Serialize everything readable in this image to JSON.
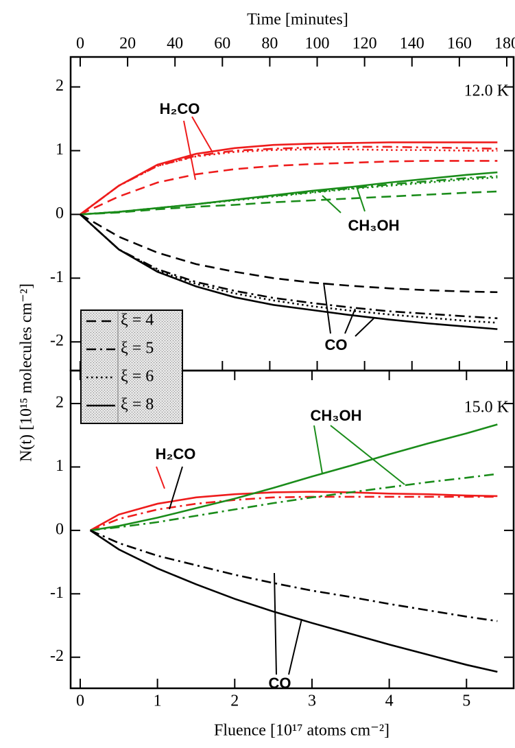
{
  "chart_data": [
    {
      "type": "line",
      "x2label": "Time [minutes]",
      "x2lim": [
        -4.04,
        182.9
      ],
      "x2ticks": [
        0,
        20,
        40,
        60,
        80,
        100,
        120,
        140,
        160,
        180
      ],
      "ylabel": "N(t) [10¹⁵ molecules cm⁻²]",
      "xlim": [
        -0.124,
        5.61
      ],
      "ylim": [
        -2.45,
        2.47
      ],
      "yticks": [
        -2,
        -1,
        0,
        1,
        2
      ],
      "x": [
        0,
        0.5,
        1,
        1.5,
        2,
        2.5,
        3,
        3.5,
        4,
        4.5,
        5,
        5.4
      ],
      "series": [
        {
          "name": "ξ = 4",
          "dash": "dashed",
          "color": "#ee1c1c",
          "values": [
            0,
            0.28,
            0.5,
            0.63,
            0.71,
            0.76,
            0.79,
            0.81,
            0.83,
            0.84,
            0.84,
            0.84
          ]
        },
        {
          "name": "ξ = 5",
          "dash": "dashdot",
          "color": "#ee1c1c",
          "values": [
            0,
            0.45,
            0.76,
            0.92,
            1.0,
            1.03,
            1.05,
            1.06,
            1.06,
            1.05,
            1.04,
            1.03
          ]
        },
        {
          "name": "ξ = 6",
          "dash": "dotted",
          "color": "#ee1c1c",
          "values": [
            0,
            0.45,
            0.76,
            0.91,
            0.98,
            1.01,
            1.02,
            1.02,
            1.01,
            1.01,
            1.0,
            1.0
          ]
        },
        {
          "name": "ξ = 8",
          "dash": "solid",
          "color": "#ee1c1c",
          "values": [
            0,
            0.45,
            0.78,
            0.95,
            1.04,
            1.09,
            1.11,
            1.12,
            1.13,
            1.13,
            1.13,
            1.13
          ]
        },
        {
          "name": "ξ = 4",
          "dash": "dashed",
          "color": "#1a8c1a",
          "values": [
            0,
            0.03,
            0.08,
            0.12,
            0.15,
            0.19,
            0.22,
            0.25,
            0.28,
            0.31,
            0.34,
            0.36
          ]
        },
        {
          "name": "ξ = 6",
          "dash": "dotted",
          "color": "#1a8c1a",
          "values": [
            0,
            0.04,
            0.1,
            0.16,
            0.22,
            0.28,
            0.34,
            0.4,
            0.45,
            0.5,
            0.55,
            0.58
          ]
        },
        {
          "name": "ξ = 5",
          "dash": "dashdot",
          "color": "#1a8c1a",
          "values": [
            0,
            0.04,
            0.1,
            0.16,
            0.23,
            0.29,
            0.35,
            0.41,
            0.47,
            0.52,
            0.57,
            0.6
          ]
        },
        {
          "name": "ξ = 8",
          "dash": "solid",
          "color": "#1a8c1a",
          "values": [
            0,
            0.04,
            0.1,
            0.16,
            0.23,
            0.3,
            0.37,
            0.43,
            0.5,
            0.56,
            0.62,
            0.66
          ]
        },
        {
          "name": "ξ = 4",
          "dash": "dashed",
          "color": "#000000",
          "values": [
            0,
            -0.35,
            -0.6,
            -0.78,
            -0.9,
            -1.0,
            -1.07,
            -1.12,
            -1.16,
            -1.19,
            -1.21,
            -1.22
          ]
        },
        {
          "name": "ξ = 5",
          "dash": "dashdot",
          "color": "#000000",
          "values": [
            0,
            -0.55,
            -0.86,
            -1.06,
            -1.2,
            -1.31,
            -1.39,
            -1.46,
            -1.52,
            -1.56,
            -1.6,
            -1.63
          ]
        },
        {
          "name": "ξ = 6",
          "dash": "dotted",
          "color": "#000000",
          "values": [
            0,
            -0.55,
            -0.88,
            -1.09,
            -1.24,
            -1.35,
            -1.44,
            -1.51,
            -1.57,
            -1.62,
            -1.67,
            -1.7
          ]
        },
        {
          "name": "ξ = 8",
          "dash": "solid",
          "color": "#000000",
          "values": [
            0,
            -0.55,
            -0.9,
            -1.13,
            -1.3,
            -1.42,
            -1.5,
            -1.58,
            -1.65,
            -1.71,
            -1.76,
            -1.8
          ]
        }
      ],
      "annotations": [
        "H₂CO",
        "CH₃OH",
        "CO",
        "12.0 K"
      ]
    },
    {
      "type": "line",
      "xlabel": "Fluence [10¹⁷ atoms cm⁻²]",
      "xlim": [
        -0.124,
        5.61
      ],
      "xticks": [
        0,
        1,
        2,
        3,
        4,
        5
      ],
      "ylim": [
        -2.49,
        2.52
      ],
      "yticks": [
        -2,
        -1,
        0,
        1,
        2
      ],
      "x": [
        0.13,
        0.5,
        1,
        1.5,
        2,
        2.5,
        3,
        3.5,
        4,
        4.5,
        5,
        5.4
      ],
      "series": [
        {
          "name": "ξ = 5",
          "dash": "dashdot",
          "color": "#ee1c1c",
          "values": [
            0,
            0.18,
            0.33,
            0.42,
            0.48,
            0.52,
            0.53,
            0.53,
            0.53,
            0.53,
            0.53,
            0.53
          ]
        },
        {
          "name": "ξ = 8",
          "dash": "solid",
          "color": "#ee1c1c",
          "values": [
            0,
            0.25,
            0.42,
            0.52,
            0.57,
            0.6,
            0.61,
            0.6,
            0.58,
            0.57,
            0.55,
            0.54
          ]
        },
        {
          "name": "ξ = 5",
          "dash": "dashdot",
          "color": "#1a8c1a",
          "values": [
            0,
            0.05,
            0.13,
            0.23,
            0.33,
            0.43,
            0.52,
            0.6,
            0.68,
            0.76,
            0.83,
            0.89
          ]
        },
        {
          "name": "ξ = 8",
          "dash": "solid",
          "color": "#1a8c1a",
          "values": [
            0,
            0.07,
            0.2,
            0.35,
            0.5,
            0.67,
            0.85,
            1.02,
            1.2,
            1.37,
            1.53,
            1.67
          ]
        },
        {
          "name": "ξ = 5",
          "dash": "dashdot",
          "color": "#000000",
          "values": [
            0,
            -0.2,
            -0.4,
            -0.55,
            -0.7,
            -0.83,
            -0.95,
            -1.05,
            -1.16,
            -1.26,
            -1.36,
            -1.43
          ]
        },
        {
          "name": "ξ = 8",
          "dash": "solid",
          "color": "#000000",
          "values": [
            0,
            -0.3,
            -0.6,
            -0.85,
            -1.08,
            -1.28,
            -1.46,
            -1.63,
            -1.8,
            -1.96,
            -2.12,
            -2.23
          ]
        }
      ],
      "annotations": [
        "CH₃OH",
        "H₂CO",
        "CO",
        "15.0 K"
      ]
    }
  ]
}
